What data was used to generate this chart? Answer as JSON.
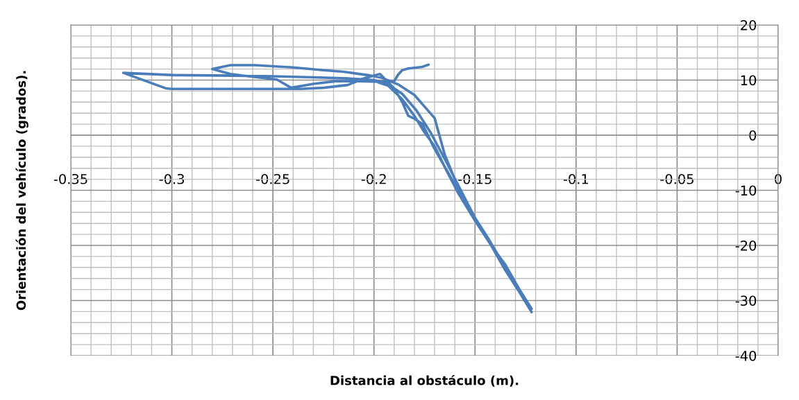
{
  "chart_data": {
    "type": "line",
    "xlabel": "Distancia al obstáculo (m).",
    "ylabel": "Orientación del vehículo (grados).",
    "xlim": [
      -0.35,
      0
    ],
    "ylim": [
      -40,
      20
    ],
    "xticks": [
      -0.35,
      -0.3,
      -0.25,
      -0.2,
      -0.15,
      -0.1,
      -0.05,
      0
    ],
    "yticks": [
      -40,
      -30,
      -20,
      -10,
      0,
      10,
      20
    ],
    "grid": true,
    "marker": "none",
    "line_style": "solid",
    "series": [
      {
        "color": "#4a7ebb",
        "x": [
          -0.198,
          -0.193,
          -0.186,
          -0.18,
          -0.175,
          -0.17,
          -0.164,
          -0.158,
          -0.15,
          -0.142,
          -0.135,
          -0.128,
          -0.122,
          -0.126,
          -0.135,
          -0.143,
          -0.15,
          -0.157,
          -0.163,
          -0.17,
          -0.176,
          -0.18,
          -0.183,
          -0.186,
          -0.19,
          -0.197,
          -0.205,
          -0.213,
          -0.225,
          -0.236,
          -0.25,
          -0.27,
          -0.3,
          -0.303,
          -0.324,
          -0.299,
          -0.27,
          -0.25,
          -0.23,
          -0.213,
          -0.2,
          -0.193,
          -0.186,
          -0.179,
          -0.172,
          -0.164,
          -0.157,
          -0.15,
          -0.142,
          -0.135,
          -0.128,
          -0.122,
          -0.13,
          -0.14,
          -0.148,
          -0.155,
          -0.16,
          -0.165,
          -0.17,
          -0.175,
          -0.18,
          -0.188,
          -0.196,
          -0.203,
          -0.215,
          -0.225,
          -0.24,
          -0.259,
          -0.271,
          -0.28,
          -0.271,
          -0.26,
          -0.248,
          -0.241,
          -0.23,
          -0.219,
          -0.207,
          -0.197,
          -0.19,
          -0.188,
          -0.186,
          -0.183,
          -0.176,
          -0.173
        ],
        "values": [
          9.6,
          9.0,
          6.5,
          3.5,
          0.5,
          -2.0,
          -6.5,
          -10.7,
          -15.5,
          -20.0,
          -23.5,
          -28.0,
          -31.5,
          -29.5,
          -24.0,
          -19.0,
          -15.0,
          -11.0,
          -7.0,
          -2.5,
          2.0,
          3.0,
          3.5,
          6.0,
          8.5,
          11.1,
          10.3,
          9.1,
          8.6,
          8.4,
          8.4,
          8.4,
          8.4,
          8.5,
          11.3,
          10.9,
          10.8,
          10.7,
          10.5,
          10.3,
          10.0,
          9.2,
          7.5,
          4.5,
          0.5,
          -5.0,
          -10.0,
          -15.0,
          -20.0,
          -24.5,
          -28.5,
          -32.1,
          -27.0,
          -21.0,
          -16.5,
          -12.0,
          -8.0,
          -3.5,
          3.1,
          5.2,
          7.3,
          9.2,
          10.4,
          10.9,
          11.5,
          11.8,
          12.3,
          12.7,
          12.7,
          12.0,
          11.1,
          10.6,
          10.1,
          8.6,
          9.3,
          9.8,
          9.8,
          9.7,
          9.8,
          11.0,
          11.8,
          12.1,
          12.4,
          12.8
        ]
      }
    ]
  }
}
